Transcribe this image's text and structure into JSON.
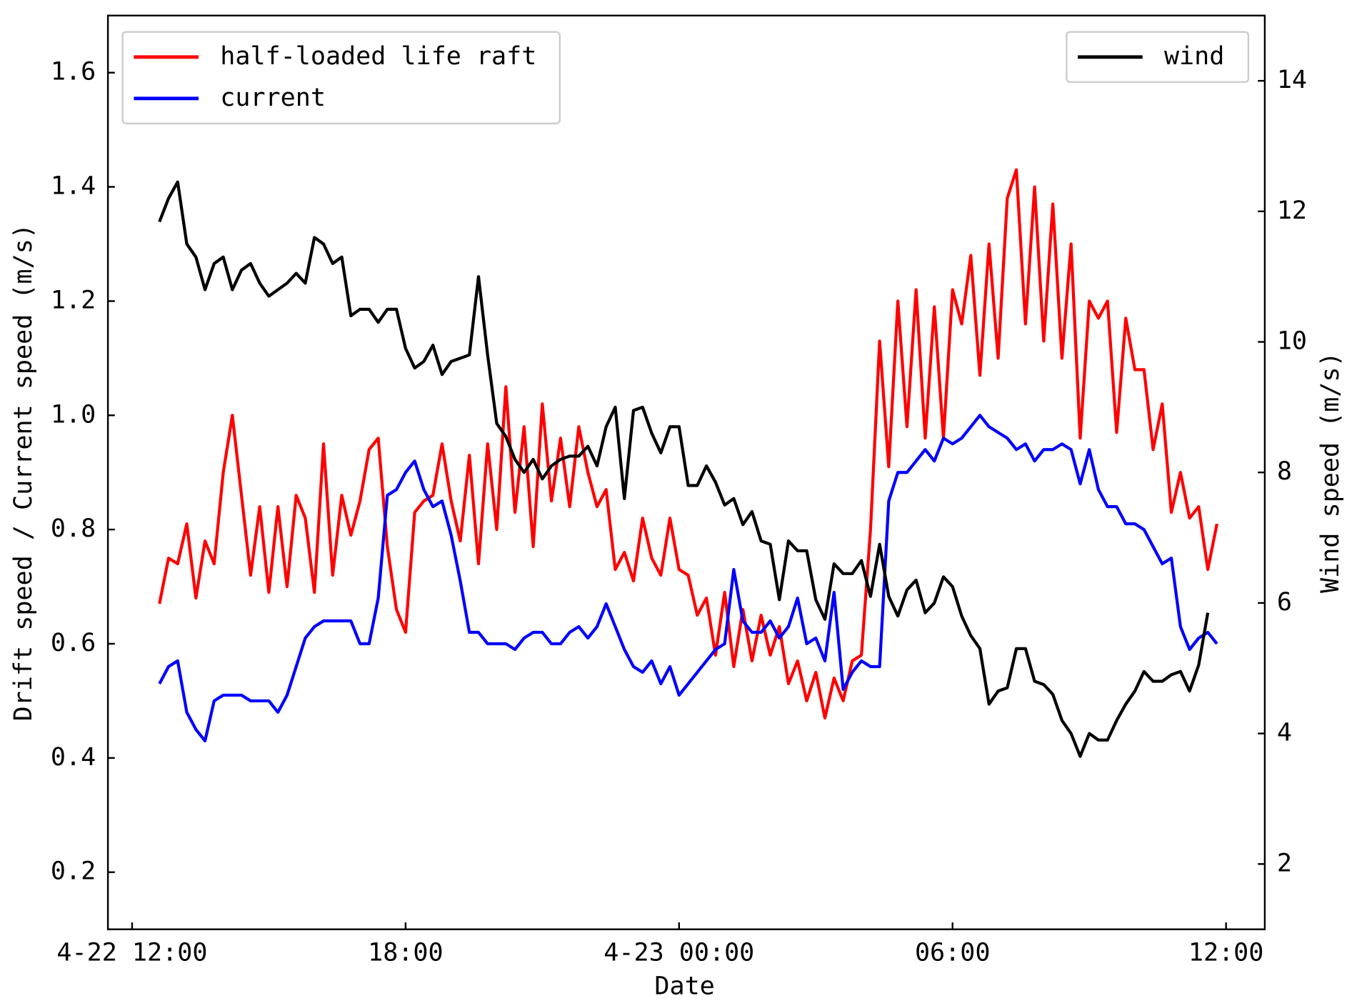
{
  "chart_data": {
    "type": "line",
    "xlabel": "Date",
    "ylabel": "Drift speed / Current speed (m/s)",
    "y2label": "Wind speed (m/s)",
    "x": [
      12.6,
      12.8,
      13.0,
      13.2,
      13.4,
      13.6,
      13.8,
      14.0,
      14.2,
      14.4,
      14.6,
      14.8,
      15.0,
      15.2,
      15.4,
      15.6,
      15.8,
      16.0,
      16.2,
      16.4,
      16.6,
      16.8,
      17.0,
      17.2,
      17.4,
      17.6,
      17.8,
      18.0,
      18.2,
      18.4,
      18.6,
      18.8,
      19.0,
      19.2,
      19.4,
      19.6,
      19.8,
      20.0,
      20.2,
      20.4,
      20.6,
      20.8,
      21.0,
      21.2,
      21.4,
      21.6,
      21.8,
      22.0,
      22.2,
      22.4,
      22.6,
      22.8,
      23.0,
      23.2,
      23.4,
      23.6,
      23.8,
      24.0,
      24.2,
      24.4,
      24.6,
      24.8,
      25.0,
      25.2,
      25.4,
      25.6,
      25.8,
      26.0,
      26.2,
      26.4,
      26.6,
      26.8,
      27.0,
      27.2,
      27.4,
      27.6,
      27.8,
      28.0,
      28.2,
      28.4,
      28.6,
      28.8,
      29.0,
      29.2,
      29.4,
      29.6,
      29.8,
      30.0,
      30.2,
      30.4,
      30.6,
      30.8,
      31.0,
      31.2,
      31.4,
      31.6,
      31.8,
      32.0,
      32.2,
      32.4,
      32.6,
      32.8,
      33.0,
      33.2,
      33.4,
      33.6,
      33.8,
      34.0,
      34.2,
      34.4,
      34.6,
      34.8,
      35.0,
      35.2,
      35.4,
      35.6,
      35.8
    ],
    "xlim": [
      11.47,
      36.85
    ],
    "xticks": [
      {
        "value": 12,
        "label": "4-22 12:00"
      },
      {
        "value": 18,
        "label": "18:00"
      },
      {
        "value": 24,
        "label": "4-23 00:00"
      },
      {
        "value": 30,
        "label": "06:00"
      },
      {
        "value": 36,
        "label": "12:00"
      }
    ],
    "ylim": [
      0.1,
      1.7
    ],
    "yticks": [
      0.2,
      0.4,
      0.6,
      0.8,
      {
        "value": 1,
        "label": "1.0"
      },
      1.2,
      1.4,
      1.6
    ],
    "y2lim": [
      1,
      15
    ],
    "y2ticks": [
      2,
      4,
      6,
      8,
      10,
      12,
      14
    ],
    "legend": "upper left",
    "legend2": "upper right",
    "series": [
      {
        "name": "half-loaded life raft",
        "color": "#ff0000",
        "values": [
          0.67,
          0.75,
          0.74,
          0.81,
          0.68,
          0.78,
          0.74,
          0.9,
          1.0,
          0.86,
          0.72,
          0.84,
          0.69,
          0.84,
          0.7,
          0.86,
          0.82,
          0.69,
          0.95,
          0.72,
          0.86,
          0.79,
          0.85,
          0.94,
          0.96,
          0.77,
          0.66,
          0.62,
          0.83,
          0.85,
          0.86,
          0.95,
          0.85,
          0.78,
          0.93,
          0.74,
          0.95,
          0.8,
          1.05,
          0.83,
          0.98,
          0.77,
          1.02,
          0.85,
          0.96,
          0.84,
          0.98,
          0.9,
          0.84,
          0.87,
          0.73,
          0.76,
          0.71,
          0.82,
          0.75,
          0.72,
          0.82,
          0.73,
          0.72,
          0.65,
          0.68,
          0.58,
          0.69,
          0.56,
          0.66,
          0.57,
          0.65,
          0.58,
          0.63,
          0.53,
          0.57,
          0.5,
          0.55,
          0.47,
          0.54,
          0.5,
          0.57,
          0.58,
          0.8,
          1.13,
          0.91,
          1.2,
          0.98,
          1.22,
          0.96,
          1.19,
          0.96,
          1.22,
          1.16,
          1.28,
          1.07,
          1.3,
          1.1,
          1.38,
          1.43,
          1.16,
          1.4,
          1.13,
          1.37,
          1.1,
          1.3,
          0.96,
          1.2,
          1.17,
          1.2,
          0.97,
          1.17,
          1.08,
          1.08,
          0.94,
          1.02,
          0.83,
          0.9,
          0.82,
          0.84,
          0.73,
          0.81
        ]
      },
      {
        "name": "current",
        "color": "#0000ff",
        "values": [
          0.53,
          0.56,
          0.57,
          0.48,
          0.45,
          0.43,
          0.5,
          0.51,
          0.51,
          0.51,
          0.5,
          0.5,
          0.5,
          0.48,
          0.51,
          0.56,
          0.61,
          0.63,
          0.64,
          0.64,
          0.64,
          0.64,
          0.6,
          0.6,
          0.68,
          0.86,
          0.87,
          0.9,
          0.92,
          0.87,
          0.84,
          0.85,
          0.79,
          0.71,
          0.62,
          0.62,
          0.6,
          0.6,
          0.6,
          0.59,
          0.61,
          0.62,
          0.62,
          0.6,
          0.6,
          0.62,
          0.63,
          0.61,
          0.63,
          0.67,
          0.63,
          0.59,
          0.56,
          0.55,
          0.57,
          0.53,
          0.56,
          0.51,
          0.53,
          0.55,
          0.57,
          0.59,
          0.6,
          0.73,
          0.64,
          0.62,
          0.62,
          0.64,
          0.61,
          0.63,
          0.68,
          0.6,
          0.61,
          0.57,
          0.69,
          0.52,
          0.55,
          0.57,
          0.56,
          0.56,
          0.85,
          0.9,
          0.9,
          0.92,
          0.94,
          0.92,
          0.96,
          0.95,
          0.96,
          0.98,
          1.0,
          0.98,
          0.97,
          0.96,
          0.94,
          0.95,
          0.92,
          0.94,
          0.94,
          0.95,
          0.94,
          0.88,
          0.94,
          0.87,
          0.84,
          0.84,
          0.81,
          0.81,
          0.8,
          0.77,
          0.74,
          0.75,
          0.63,
          0.59,
          0.61,
          0.62,
          0.6
        ]
      },
      {
        "name": "wind",
        "color": "#000000",
        "axis": "y2",
        "values": [
          11.84,
          12.2,
          12.45,
          11.5,
          11.3,
          10.8,
          11.2,
          11.3,
          10.8,
          11.1,
          11.2,
          10.9,
          10.7,
          10.8,
          10.9,
          11.05,
          10.9,
          11.6,
          11.5,
          11.2,
          11.3,
          10.4,
          10.5,
          10.5,
          10.3,
          10.5,
          10.5,
          9.9,
          9.6,
          9.7,
          9.95,
          9.5,
          9.7,
          9.75,
          9.8,
          11.0,
          9.8,
          8.75,
          8.55,
          8.2,
          8.0,
          8.2,
          7.9,
          8.1,
          8.2,
          8.25,
          8.25,
          8.4,
          8.1,
          8.7,
          9.0,
          7.6,
          8.95,
          9.0,
          8.6,
          8.3,
          8.7,
          8.7,
          7.8,
          7.8,
          8.1,
          7.85,
          7.5,
          7.6,
          7.2,
          7.4,
          6.95,
          6.9,
          6.05,
          6.95,
          6.8,
          6.8,
          6.05,
          5.75,
          6.6,
          6.45,
          6.45,
          6.65,
          6.1,
          6.9,
          6.1,
          5.8,
          6.2,
          6.35,
          5.85,
          6.0,
          6.4,
          6.25,
          5.8,
          5.5,
          5.3,
          4.45,
          4.65,
          4.7,
          5.3,
          5.3,
          4.8,
          4.75,
          4.6,
          4.2,
          4.0,
          3.65,
          4.0,
          3.9,
          3.9,
          4.2,
          4.45,
          4.65,
          4.95,
          4.8,
          4.8,
          4.9,
          4.95,
          4.65,
          5.05,
          5.85,
          null
        ]
      }
    ]
  }
}
